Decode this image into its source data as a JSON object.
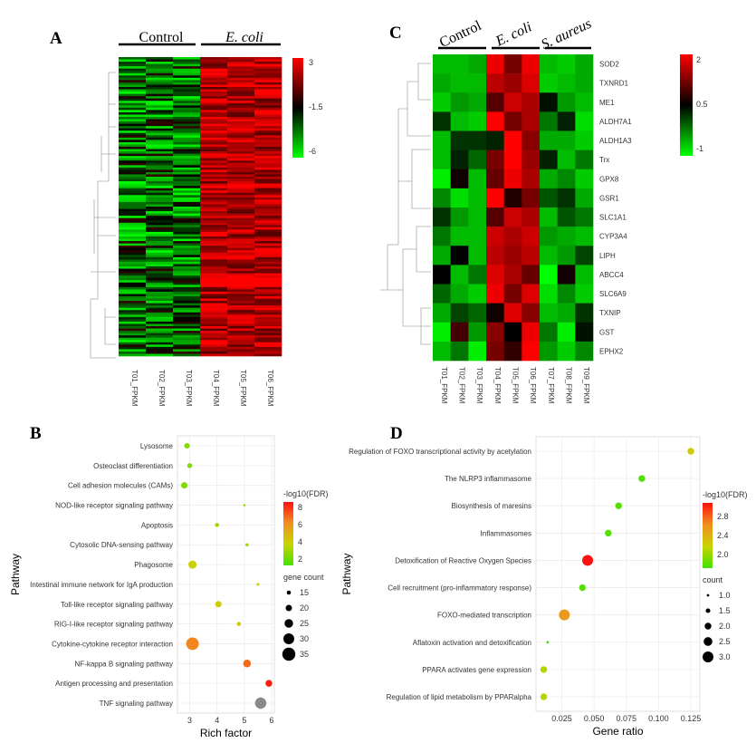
{
  "panels": {
    "A": {
      "label": "A",
      "groups": [
        {
          "name": "Control",
          "italic": false
        },
        {
          "name": "E. coli",
          "italic": true
        }
      ],
      "samples": [
        "T01_FPKM",
        "T02_FPKM",
        "T03_FPKM",
        "T04_FPKM",
        "T05_FPKM",
        "T06_FPKM"
      ],
      "scale": {
        "ticks": [
          "3",
          "-1.5",
          "-6"
        ],
        "low": "#00ff00",
        "mid": "#000000",
        "high": "#ff0000"
      }
    },
    "C": {
      "label": "C",
      "groups": [
        {
          "name": "Control",
          "italic": false
        },
        {
          "name": "E. coli",
          "italic": true
        },
        {
          "name": "S. aureus",
          "italic": true
        }
      ],
      "samples": [
        "T01_FPKM",
        "T02_FPKM",
        "T03_FPKM",
        "T04_FPKM",
        "T05_FPKM",
        "T06_FPKM",
        "T07_FPKM",
        "T08_FPKM",
        "T09_FPKM"
      ],
      "genes": [
        "SOD2",
        "TXNRD1",
        "ME1",
        "ALDH7A1",
        "ALDH1A3",
        "Trx",
        "GPX8",
        "GSR1",
        "SLC1A1",
        "CYP3A4",
        "LIPH",
        "ABCC4",
        "SLC6A9",
        "TXNIP",
        "GST",
        "EPHX2"
      ],
      "scale": {
        "ticks": [
          "2",
          "0.5",
          "-1"
        ],
        "low": "#00ff00",
        "mid": "#000000",
        "high": "#ff0000"
      }
    },
    "B": {
      "label": "B"
    },
    "D": {
      "label": "D"
    }
  },
  "chart_data": [
    {
      "type": "heatmap",
      "panel": "A",
      "rows": 130,
      "columns": [
        "T01_FPKM",
        "T02_FPKM",
        "T03_FPKM",
        "T04_FPKM",
        "T05_FPKM",
        "T06_FPKM"
      ],
      "value_range": [
        -6,
        3
      ],
      "description": "Control samples predominantly low expression, E. coli samples predominantly high expression"
    },
    {
      "type": "heatmap",
      "panel": "C",
      "columns": [
        "T01_FPKM",
        "T02_FPKM",
        "T03_FPKM",
        "T04_FPKM",
        "T05_FPKM",
        "T06_FPKM",
        "T07_FPKM",
        "T08_FPKM",
        "T09_FPKM"
      ],
      "rows": [
        "SOD2",
        "TXNRD1",
        "ME1",
        "ALDH7A1",
        "ALDH1A3",
        "Trx",
        "GPX8",
        "GSR1",
        "SLC1A1",
        "CYP3A4",
        "LIPH",
        "ABCC4",
        "SLC6A9",
        "TXNIP",
        "GST",
        "EPHX2"
      ],
      "value_range": [
        -1,
        2
      ],
      "values": [
        [
          -0.6,
          -0.6,
          -0.5,
          1.9,
          1.2,
          1.9,
          -0.6,
          -0.7,
          -0.5
        ],
        [
          -0.5,
          -0.6,
          -0.6,
          1.6,
          1.4,
          1.8,
          -0.7,
          -0.6,
          -0.5
        ],
        [
          -0.7,
          -0.4,
          -0.5,
          1.0,
          1.7,
          1.5,
          0.4,
          -0.4,
          -0.6
        ],
        [
          0.2,
          -0.6,
          -0.7,
          2.1,
          1.2,
          1.5,
          -0.2,
          0.3,
          -0.8
        ],
        [
          -0.6,
          0.2,
          0.2,
          0.3,
          2.3,
          1.3,
          -0.5,
          -0.5,
          -0.7
        ],
        [
          -0.6,
          0.3,
          -0.1,
          1.2,
          2.0,
          1.4,
          0.3,
          -0.6,
          -0.2
        ],
        [
          -0.9,
          0.6,
          -0.6,
          1.1,
          1.9,
          1.5,
          -0.5,
          -0.3,
          -0.7
        ],
        [
          -0.3,
          -0.8,
          -0.6,
          2.4,
          0.7,
          1.2,
          0.0,
          0.2,
          -0.5
        ],
        [
          0.2,
          -0.4,
          -0.6,
          1.0,
          1.7,
          1.5,
          -0.6,
          0.0,
          -0.2
        ],
        [
          -0.2,
          -0.6,
          -0.6,
          1.7,
          1.5,
          1.7,
          -0.4,
          -0.5,
          -0.6
        ],
        [
          -0.5,
          0.5,
          -0.6,
          1.6,
          1.4,
          1.6,
          -0.6,
          -0.4,
          0.1
        ],
        [
          0.5,
          -0.6,
          -0.2,
          1.8,
          1.5,
          1.1,
          -1.0,
          0.6,
          -0.6
        ],
        [
          -0.1,
          -0.5,
          -0.7,
          1.9,
          1.2,
          1.8,
          -0.8,
          -0.3,
          -0.7
        ],
        [
          -0.5,
          0.1,
          -0.1,
          0.6,
          1.8,
          1.3,
          -0.6,
          -0.5,
          0.2
        ],
        [
          -0.9,
          0.9,
          -0.4,
          1.3,
          0.5,
          1.9,
          -0.2,
          -0.9,
          0.4
        ],
        [
          -0.6,
          -0.2,
          -0.9,
          1.2,
          0.8,
          2.3,
          -0.4,
          -0.7,
          -0.3
        ]
      ]
    },
    {
      "type": "scatter",
      "panel": "B",
      "xlabel": "Rich factor",
      "ylabel": "Pathway",
      "xlim": [
        2.55,
        6.1
      ],
      "xticks": [
        3,
        4,
        5,
        6
      ],
      "categories": [
        "Lysosome",
        "Osteoclast differentiation",
        "Cell adhesion molecules (CAMs)",
        "NOD-like receptor signaling pathway",
        "Apoptosis",
        "Cytosolic DNA-sensing pathway",
        "Phagosome",
        "Intestinal immune network for IgA production",
        "Toll-like receptor signaling pathway",
        "RIG-I-like receptor signaling pathway",
        "Cytokine-cytokine receptor interaction",
        "NF-kappa B signaling pathway",
        "Antigen processing and presentation",
        "TNF signaling pathway"
      ],
      "x": [
        2.9,
        3.0,
        2.8,
        5.0,
        4.0,
        5.1,
        3.1,
        5.5,
        4.05,
        4.8,
        3.1,
        5.1,
        5.9,
        5.6
      ],
      "neg_log10_fdr": [
        3.0,
        3.0,
        3.0,
        3.2,
        3.5,
        3.5,
        4.3,
        4.3,
        4.4,
        4.5,
        6.5,
        7.0,
        8.3,
        null
      ],
      "gene_count": [
        18,
        17,
        20,
        11,
        15,
        13,
        24,
        12,
        20,
        15,
        34,
        23,
        21,
        31
      ],
      "color_legend": {
        "title": "-log10(FDR)",
        "ticks": [
          "8",
          "6",
          "4",
          "2"
        ],
        "range": [
          2,
          8.5
        ]
      },
      "size_legend": {
        "title": "gene count",
        "values": [
          15,
          20,
          25,
          30,
          35
        ]
      }
    },
    {
      "type": "scatter",
      "panel": "D",
      "xlabel": "Gene ratio",
      "ylabel": "Pathway",
      "xlim": [
        0.005,
        0.132
      ],
      "xticks": [
        0.025,
        0.05,
        0.075,
        0.1,
        0.125
      ],
      "xtick_labels": [
        "0.025",
        "0.050",
        "0.075",
        "0.100",
        "0.125"
      ],
      "categories": [
        "Regulation of FOXO transcriptional activity by acetylation",
        "The NLRP3 inflammasome",
        "Biosynthesis of maresins",
        "Inflammasomes",
        "Detoxification of Reactive Oxygen Species",
        "Cell recruitment (pro-inflammatory response)",
        "FOXO-mediated transcription",
        "Aflatoxin activation and detoxification",
        "PPARA activates gene expression",
        "Regulation of lipid metabolism by PPARalpha"
      ],
      "x": [
        0.125,
        0.087,
        0.069,
        0.061,
        0.045,
        0.041,
        0.027,
        0.014,
        0.011,
        0.011
      ],
      "neg_log10_fdr": [
        2.25,
        1.85,
        1.85,
        1.85,
        3.0,
        1.85,
        2.55,
        1.8,
        2.15,
        2.15
      ],
      "count": [
        2.0,
        2.0,
        2.0,
        2.0,
        3.0,
        2.0,
        3.0,
        1.0,
        2.0,
        2.0
      ],
      "color_legend": {
        "title": "-log10(FDR)",
        "ticks": [
          "2.8",
          "2.4",
          "2.0"
        ],
        "range": [
          1.8,
          3.0
        ]
      },
      "size_legend": {
        "title": "count",
        "values": [
          "1.0",
          "1.5",
          "2.0",
          "2.5",
          "3.0"
        ]
      }
    }
  ]
}
